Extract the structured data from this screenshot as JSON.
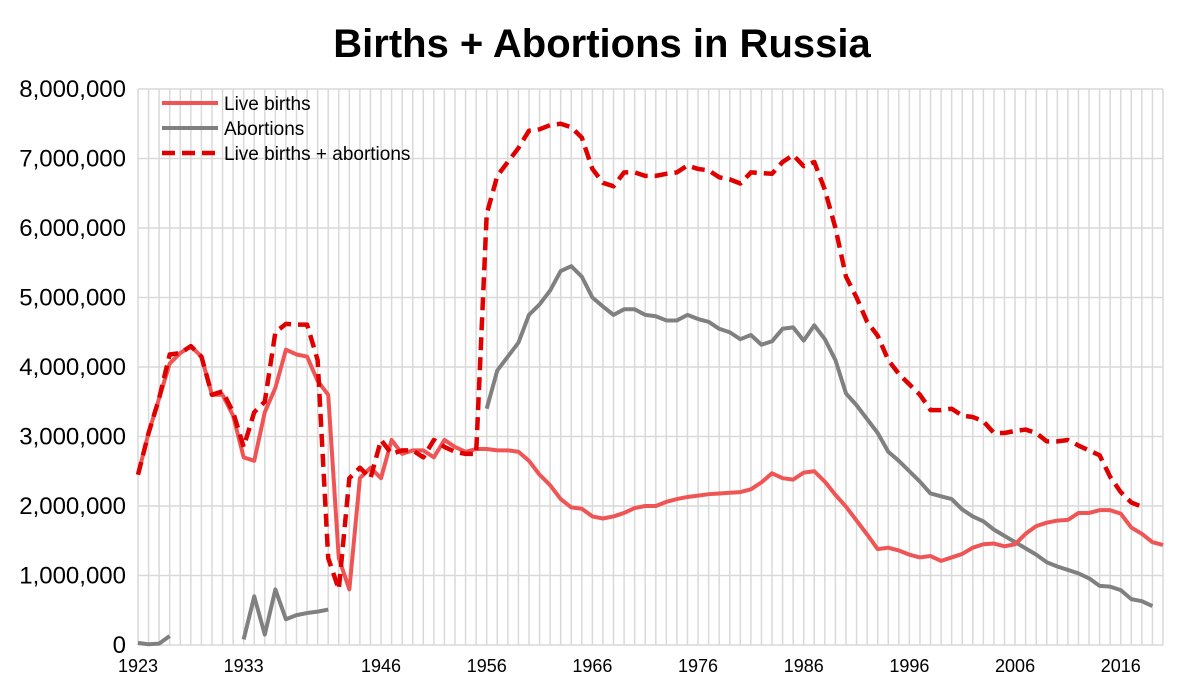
{
  "chart_data": {
    "type": "line",
    "title": "Births + Abortions in Russia",
    "xlabel": "",
    "ylabel": "",
    "xlim": [
      1923,
      2020
    ],
    "ylim": [
      0,
      8000000
    ],
    "x_ticks": [
      1923,
      1933,
      1946,
      1956,
      1966,
      1976,
      1986,
      1996,
      2006,
      2016
    ],
    "y_ticks": [
      0,
      1000000,
      2000000,
      3000000,
      4000000,
      5000000,
      6000000,
      7000000,
      8000000
    ],
    "y_tick_labels": [
      "0",
      "1,000,000",
      "2,000,000",
      "3,000,000",
      "4,000,000",
      "5,000,000",
      "6,000,000",
      "7,000,000",
      "8,000,000"
    ],
    "grid": true,
    "legend_position": "top-left",
    "series": [
      {
        "name": "Live births",
        "color": "#f05555",
        "style": "solid",
        "points": [
          [
            1923,
            2450000
          ],
          [
            1924,
            3050000
          ],
          [
            1925,
            3550000
          ],
          [
            1926,
            4050000
          ],
          [
            1927,
            4200000
          ],
          [
            1928,
            4300000
          ],
          [
            1929,
            4150000
          ],
          [
            1930,
            3600000
          ],
          [
            1931,
            3600000
          ],
          [
            1932,
            3300000
          ],
          [
            1933,
            2700000
          ],
          [
            1934,
            2650000
          ],
          [
            1935,
            3350000
          ],
          [
            1936,
            3700000
          ],
          [
            1937,
            4250000
          ],
          [
            1938,
            4180000
          ],
          [
            1939,
            4150000
          ],
          [
            1940,
            3800000
          ],
          [
            1941,
            3600000
          ],
          [
            1942,
            1250000
          ],
          [
            1943,
            800000
          ],
          [
            1944,
            2400000
          ],
          [
            1945,
            2550000
          ],
          [
            1946,
            2400000
          ],
          [
            1947,
            2950000
          ],
          [
            1948,
            2750000
          ],
          [
            1949,
            2800000
          ],
          [
            1950,
            2800000
          ],
          [
            1951,
            2700000
          ],
          [
            1952,
            2950000
          ],
          [
            1953,
            2850000
          ],
          [
            1954,
            2780000
          ],
          [
            1955,
            2820000
          ],
          [
            1956,
            2820000
          ],
          [
            1957,
            2800000
          ],
          [
            1958,
            2800000
          ],
          [
            1959,
            2780000
          ],
          [
            1960,
            2650000
          ],
          [
            1961,
            2450000
          ],
          [
            1962,
            2300000
          ],
          [
            1963,
            2100000
          ],
          [
            1964,
            1980000
          ],
          [
            1965,
            1960000
          ],
          [
            1966,
            1850000
          ],
          [
            1967,
            1820000
          ],
          [
            1968,
            1850000
          ],
          [
            1969,
            1900000
          ],
          [
            1970,
            1970000
          ],
          [
            1971,
            2000000
          ],
          [
            1972,
            2000000
          ],
          [
            1973,
            2060000
          ],
          [
            1974,
            2100000
          ],
          [
            1975,
            2130000
          ],
          [
            1976,
            2150000
          ],
          [
            1977,
            2170000
          ],
          [
            1978,
            2180000
          ],
          [
            1979,
            2190000
          ],
          [
            1980,
            2200000
          ],
          [
            1981,
            2240000
          ],
          [
            1982,
            2340000
          ],
          [
            1983,
            2470000
          ],
          [
            1984,
            2400000
          ],
          [
            1985,
            2380000
          ],
          [
            1986,
            2480000
          ],
          [
            1987,
            2500000
          ],
          [
            1988,
            2350000
          ],
          [
            1989,
            2160000
          ],
          [
            1990,
            1990000
          ],
          [
            1991,
            1790000
          ],
          [
            1992,
            1590000
          ],
          [
            1993,
            1380000
          ],
          [
            1994,
            1400000
          ],
          [
            1995,
            1360000
          ],
          [
            1996,
            1300000
          ],
          [
            1997,
            1260000
          ],
          [
            1998,
            1280000
          ],
          [
            1999,
            1210000
          ],
          [
            2000,
            1260000
          ],
          [
            2001,
            1310000
          ],
          [
            2002,
            1400000
          ],
          [
            2003,
            1450000
          ],
          [
            2004,
            1460000
          ],
          [
            2005,
            1420000
          ],
          [
            2006,
            1450000
          ],
          [
            2007,
            1600000
          ],
          [
            2008,
            1710000
          ],
          [
            2009,
            1760000
          ],
          [
            2010,
            1790000
          ],
          [
            2011,
            1800000
          ],
          [
            2012,
            1900000
          ],
          [
            2013,
            1900000
          ],
          [
            2014,
            1940000
          ],
          [
            2015,
            1940000
          ],
          [
            2016,
            1890000
          ],
          [
            2017,
            1690000
          ],
          [
            2018,
            1600000
          ],
          [
            2019,
            1480000
          ],
          [
            2020,
            1440000
          ]
        ]
      },
      {
        "name": "Abortions",
        "color": "#808080",
        "style": "solid",
        "segments": [
          [
            [
              1923,
              30000
            ],
            [
              1924,
              10000
            ],
            [
              1925,
              20000
            ],
            [
              1926,
              130000
            ]
          ],
          [
            [
              1933,
              80000
            ],
            [
              1934,
              700000
            ],
            [
              1935,
              150000
            ],
            [
              1936,
              800000
            ],
            [
              1937,
              370000
            ],
            [
              1938,
              430000
            ],
            [
              1939,
              460000
            ],
            [
              1940,
              480000
            ],
            [
              1941,
              510000
            ]
          ],
          [
            [
              1956,
              3400000
            ],
            [
              1957,
              3950000
            ],
            [
              1958,
              4150000
            ],
            [
              1959,
              4350000
            ],
            [
              1960,
              4750000
            ],
            [
              1961,
              4900000
            ],
            [
              1962,
              5100000
            ],
            [
              1963,
              5380000
            ],
            [
              1964,
              5450000
            ],
            [
              1965,
              5300000
            ],
            [
              1966,
              5000000
            ],
            [
              1967,
              4870000
            ],
            [
              1968,
              4750000
            ],
            [
              1969,
              4830000
            ],
            [
              1970,
              4830000
            ],
            [
              1971,
              4750000
            ],
            [
              1972,
              4730000
            ],
            [
              1973,
              4670000
            ],
            [
              1974,
              4670000
            ],
            [
              1975,
              4750000
            ],
            [
              1976,
              4690000
            ],
            [
              1977,
              4650000
            ],
            [
              1978,
              4550000
            ],
            [
              1979,
              4500000
            ],
            [
              1980,
              4400000
            ],
            [
              1981,
              4460000
            ],
            [
              1982,
              4320000
            ],
            [
              1983,
              4370000
            ],
            [
              1984,
              4550000
            ],
            [
              1985,
              4570000
            ],
            [
              1986,
              4380000
            ],
            [
              1987,
              4600000
            ],
            [
              1988,
              4400000
            ],
            [
              1989,
              4100000
            ],
            [
              1990,
              3620000
            ],
            [
              1991,
              3450000
            ],
            [
              1992,
              3250000
            ],
            [
              1993,
              3050000
            ],
            [
              1994,
              2780000
            ],
            [
              1995,
              2650000
            ],
            [
              1996,
              2500000
            ],
            [
              1997,
              2350000
            ],
            [
              1998,
              2180000
            ],
            [
              1999,
              2140000
            ],
            [
              2000,
              2100000
            ],
            [
              2001,
              1950000
            ],
            [
              2002,
              1850000
            ],
            [
              2003,
              1780000
            ],
            [
              2004,
              1660000
            ],
            [
              2005,
              1570000
            ],
            [
              2006,
              1480000
            ],
            [
              2007,
              1390000
            ],
            [
              2008,
              1300000
            ],
            [
              2009,
              1190000
            ],
            [
              2010,
              1130000
            ],
            [
              2011,
              1080000
            ],
            [
              2012,
              1030000
            ],
            [
              2013,
              960000
            ],
            [
              2014,
              850000
            ],
            [
              2015,
              840000
            ],
            [
              2016,
              790000
            ],
            [
              2017,
              660000
            ],
            [
              2018,
              630000
            ],
            [
              2019,
              560000
            ]
          ]
        ]
      },
      {
        "name": "Live births + abortions",
        "color": "#e00000",
        "style": "dashed",
        "points": [
          [
            1923,
            2450000
          ],
          [
            1924,
            3050000
          ],
          [
            1925,
            3550000
          ],
          [
            1926,
            4180000
          ],
          [
            1927,
            4200000
          ],
          [
            1928,
            4300000
          ],
          [
            1929,
            4150000
          ],
          [
            1930,
            3600000
          ],
          [
            1931,
            3650000
          ],
          [
            1932,
            3350000
          ],
          [
            1933,
            2850000
          ],
          [
            1934,
            3350000
          ],
          [
            1935,
            3500000
          ],
          [
            1936,
            4500000
          ],
          [
            1937,
            4620000
          ],
          [
            1938,
            4610000
          ],
          [
            1939,
            4610000
          ],
          [
            1940,
            4100000
          ],
          [
            1941,
            1250000
          ],
          [
            1942,
            800000
          ],
          [
            1943,
            2400000
          ],
          [
            1944,
            2550000
          ],
          [
            1945,
            2400000
          ],
          [
            1946,
            2950000
          ],
          [
            1947,
            2750000
          ],
          [
            1948,
            2800000
          ],
          [
            1949,
            2800000
          ],
          [
            1950,
            2700000
          ],
          [
            1951,
            2950000
          ],
          [
            1952,
            2850000
          ],
          [
            1953,
            2780000
          ],
          [
            1954,
            2750000
          ],
          [
            1955,
            2750000
          ],
          [
            1956,
            6200000
          ],
          [
            1957,
            6750000
          ],
          [
            1958,
            6950000
          ],
          [
            1959,
            7150000
          ],
          [
            1960,
            7400000
          ],
          [
            1961,
            7420000
          ],
          [
            1962,
            7480000
          ],
          [
            1963,
            7500000
          ],
          [
            1964,
            7450000
          ],
          [
            1965,
            7300000
          ],
          [
            1966,
            6850000
          ],
          [
            1967,
            6650000
          ],
          [
            1968,
            6600000
          ],
          [
            1969,
            6800000
          ],
          [
            1970,
            6800000
          ],
          [
            1971,
            6750000
          ],
          [
            1972,
            6750000
          ],
          [
            1973,
            6780000
          ],
          [
            1974,
            6800000
          ],
          [
            1975,
            6900000
          ],
          [
            1976,
            6850000
          ],
          [
            1977,
            6830000
          ],
          [
            1978,
            6730000
          ],
          [
            1979,
            6700000
          ],
          [
            1980,
            6640000
          ],
          [
            1981,
            6800000
          ],
          [
            1982,
            6790000
          ],
          [
            1983,
            6780000
          ],
          [
            1984,
            6950000
          ],
          [
            1985,
            7050000
          ],
          [
            1986,
            6890000
          ],
          [
            1987,
            6950000
          ],
          [
            1988,
            6550000
          ],
          [
            1989,
            6000000
          ],
          [
            1990,
            5300000
          ],
          [
            1991,
            5000000
          ],
          [
            1992,
            4650000
          ],
          [
            1993,
            4450000
          ],
          [
            1994,
            4100000
          ],
          [
            1995,
            3900000
          ],
          [
            1996,
            3750000
          ],
          [
            1997,
            3600000
          ],
          [
            1998,
            3380000
          ],
          [
            1999,
            3380000
          ],
          [
            2000,
            3400000
          ],
          [
            2001,
            3300000
          ],
          [
            2002,
            3280000
          ],
          [
            2003,
            3220000
          ],
          [
            2004,
            3050000
          ],
          [
            2005,
            3050000
          ],
          [
            2006,
            3080000
          ],
          [
            2007,
            3100000
          ],
          [
            2008,
            3050000
          ],
          [
            2009,
            2930000
          ],
          [
            2010,
            2930000
          ],
          [
            2011,
            2950000
          ],
          [
            2012,
            2870000
          ],
          [
            2013,
            2800000
          ],
          [
            2014,
            2730000
          ],
          [
            2015,
            2420000
          ],
          [
            2016,
            2200000
          ],
          [
            2017,
            2050000
          ],
          [
            2018,
            1990000
          ]
        ]
      }
    ]
  }
}
